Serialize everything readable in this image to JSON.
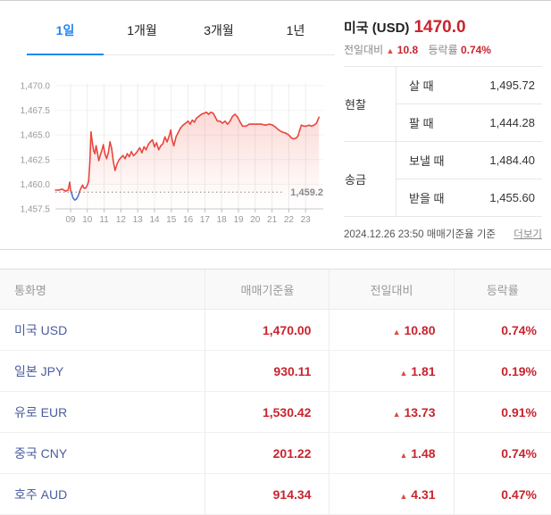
{
  "tabs": [
    {
      "label": "1일",
      "active": true
    },
    {
      "label": "1개월",
      "active": false
    },
    {
      "label": "3개월",
      "active": false
    },
    {
      "label": "1년",
      "active": false
    }
  ],
  "quote": {
    "country": "미국 (USD)",
    "price": "1470.0",
    "change_label": "전일대비",
    "change_dir": "▲",
    "change": "10.8",
    "rate_label": "등락률",
    "rate": "0.74%",
    "cash": {
      "group": "현찰",
      "rows": [
        {
          "label": "살 때",
          "value": "1,495.72"
        },
        {
          "label": "팔 때",
          "value": "1,444.28"
        }
      ]
    },
    "wire": {
      "group": "송금",
      "rows": [
        {
          "label": "보낼 때",
          "value": "1,484.40"
        },
        {
          "label": "받을 때",
          "value": "1,455.60"
        }
      ]
    },
    "timestamp": "2024.12.26 23:50 매매기준율 기준",
    "more_label": "더보기"
  },
  "chart_data": {
    "type": "line",
    "x_ticks": [
      "09",
      "10",
      "11",
      "12",
      "13",
      "14",
      "15",
      "16",
      "17",
      "18",
      "19",
      "20",
      "21",
      "22",
      "23"
    ],
    "y_ticks": [
      {
        "label": "1,470.0",
        "value": 1470.0
      },
      {
        "label": "1,467.5",
        "value": 1467.5
      },
      {
        "label": "1,465.0",
        "value": 1465.0
      },
      {
        "label": "1,462.5",
        "value": 1462.5
      },
      {
        "label": "1,460.0",
        "value": 1460.0
      },
      {
        "label": "1,457.5",
        "value": 1457.5
      }
    ],
    "ylim": [
      1457.5,
      1470.0
    ],
    "baseline": {
      "value": 1459.2,
      "label": "1,459.2"
    },
    "grid": true,
    "legend": false,
    "series": [
      {
        "name": "미국 USD",
        "points": [
          [
            8.1,
            1459.4
          ],
          [
            8.3,
            1459.4
          ],
          [
            8.5,
            1459.5
          ],
          [
            8.7,
            1459.3
          ],
          [
            8.85,
            1459.4
          ],
          [
            8.95,
            1460.2
          ],
          [
            9.0,
            1459.4
          ],
          [
            9.08,
            1459.0
          ],
          [
            9.15,
            1458.6
          ],
          [
            9.25,
            1458.4
          ],
          [
            9.35,
            1458.5
          ],
          [
            9.45,
            1458.8
          ],
          [
            9.55,
            1459.3
          ],
          [
            9.65,
            1459.7
          ],
          [
            9.72,
            1459.9
          ],
          [
            9.8,
            1459.6
          ],
          [
            9.9,
            1459.6
          ],
          [
            10.0,
            1459.9
          ],
          [
            10.08,
            1460.3
          ],
          [
            10.15,
            1462.2
          ],
          [
            10.22,
            1465.3
          ],
          [
            10.3,
            1464.2
          ],
          [
            10.38,
            1463.4
          ],
          [
            10.45,
            1463.1
          ],
          [
            10.52,
            1463.9
          ],
          [
            10.6,
            1463.2
          ],
          [
            10.68,
            1462.4
          ],
          [
            10.78,
            1463.0
          ],
          [
            10.88,
            1463.5
          ],
          [
            10.95,
            1464.0
          ],
          [
            11.05,
            1463.1
          ],
          [
            11.15,
            1462.6
          ],
          [
            11.25,
            1463.2
          ],
          [
            11.35,
            1464.3
          ],
          [
            11.45,
            1463.6
          ],
          [
            11.55,
            1462.3
          ],
          [
            11.65,
            1461.4
          ],
          [
            11.78,
            1462.1
          ],
          [
            11.9,
            1462.5
          ],
          [
            12.0,
            1462.7
          ],
          [
            12.12,
            1462.9
          ],
          [
            12.25,
            1462.6
          ],
          [
            12.38,
            1463.1
          ],
          [
            12.5,
            1462.8
          ],
          [
            12.62,
            1463.3
          ],
          [
            12.75,
            1462.9
          ],
          [
            12.88,
            1463.1
          ],
          [
            13.0,
            1463.4
          ],
          [
            13.12,
            1463.7
          ],
          [
            13.25,
            1463.2
          ],
          [
            13.38,
            1463.8
          ],
          [
            13.5,
            1463.5
          ],
          [
            13.62,
            1464.0
          ],
          [
            13.75,
            1464.3
          ],
          [
            13.88,
            1464.5
          ],
          [
            14.0,
            1463.8
          ],
          [
            14.12,
            1464.2
          ],
          [
            14.25,
            1463.5
          ],
          [
            14.38,
            1463.9
          ],
          [
            14.5,
            1464.1
          ],
          [
            14.62,
            1464.8
          ],
          [
            14.75,
            1464.3
          ],
          [
            14.88,
            1464.9
          ],
          [
            14.97,
            1465.5
          ],
          [
            15.05,
            1464.5
          ],
          [
            15.15,
            1463.9
          ],
          [
            15.28,
            1464.8
          ],
          [
            15.4,
            1465.2
          ],
          [
            15.55,
            1465.7
          ],
          [
            15.7,
            1466.0
          ],
          [
            15.85,
            1466.2
          ],
          [
            16.0,
            1466.4
          ],
          [
            16.12,
            1466.1
          ],
          [
            16.25,
            1466.5
          ],
          [
            16.38,
            1466.3
          ],
          [
            16.5,
            1466.7
          ],
          [
            16.65,
            1466.9
          ],
          [
            16.8,
            1467.1
          ],
          [
            16.95,
            1467.2
          ],
          [
            17.1,
            1467.3
          ],
          [
            17.22,
            1467.1
          ],
          [
            17.35,
            1467.3
          ],
          [
            17.5,
            1467.2
          ],
          [
            17.62,
            1466.8
          ],
          [
            17.75,
            1466.4
          ],
          [
            17.9,
            1466.4
          ],
          [
            18.05,
            1466.2
          ],
          [
            18.2,
            1466.4
          ],
          [
            18.35,
            1466.1
          ],
          [
            18.5,
            1466.4
          ],
          [
            18.65,
            1466.9
          ],
          [
            18.8,
            1467.1
          ],
          [
            18.95,
            1466.8
          ],
          [
            19.1,
            1466.3
          ],
          [
            19.25,
            1465.9
          ],
          [
            19.45,
            1465.9
          ],
          [
            19.65,
            1466.1
          ],
          [
            19.85,
            1466.1
          ],
          [
            20.1,
            1466.1
          ],
          [
            20.35,
            1466.1
          ],
          [
            20.6,
            1466.0
          ],
          [
            20.85,
            1466.1
          ],
          [
            21.05,
            1466.0
          ],
          [
            21.2,
            1465.8
          ],
          [
            21.4,
            1465.5
          ],
          [
            21.6,
            1465.3
          ],
          [
            21.8,
            1465.2
          ],
          [
            22.0,
            1465.0
          ],
          [
            22.15,
            1464.7
          ],
          [
            22.3,
            1464.6
          ],
          [
            22.45,
            1464.7
          ],
          [
            22.55,
            1464.9
          ],
          [
            22.65,
            1465.5
          ],
          [
            22.75,
            1466.0
          ],
          [
            22.9,
            1465.9
          ],
          [
            23.05,
            1465.9
          ],
          [
            23.2,
            1466.0
          ],
          [
            23.35,
            1465.9
          ],
          [
            23.5,
            1466.0
          ],
          [
            23.65,
            1466.2
          ],
          [
            23.8,
            1466.8
          ]
        ]
      }
    ],
    "colors": {
      "line_up": "#e8483e",
      "line_down": "#4f78cc",
      "fill": "rgba(238,82,66,0.22)",
      "grid": "#ededed",
      "axis": "#c9c9c9",
      "tick_text": "#999999",
      "baseline": "#8a8a8a"
    }
  },
  "rates_table": {
    "headers": [
      "통화명",
      "매매기준율",
      "전일대비",
      "등락률"
    ],
    "up_symbol": "▲",
    "rows": [
      {
        "name": "미국 USD",
        "rate": "1,470.00",
        "change": "10.80",
        "pct": "0.74%"
      },
      {
        "name": "일본 JPY",
        "rate": "930.11",
        "change": "1.81",
        "pct": "0.19%"
      },
      {
        "name": "유로 EUR",
        "rate": "1,530.42",
        "change": "13.73",
        "pct": "0.91%"
      },
      {
        "name": "중국 CNY",
        "rate": "201.22",
        "change": "1.48",
        "pct": "0.74%"
      },
      {
        "name": "호주 AUD",
        "rate": "914.34",
        "change": "4.31",
        "pct": "0.47%"
      }
    ]
  },
  "colors": {
    "accent_blue": "#2186f0",
    "link_blue": "#4b5d9e",
    "up_red": "#c9242e"
  }
}
